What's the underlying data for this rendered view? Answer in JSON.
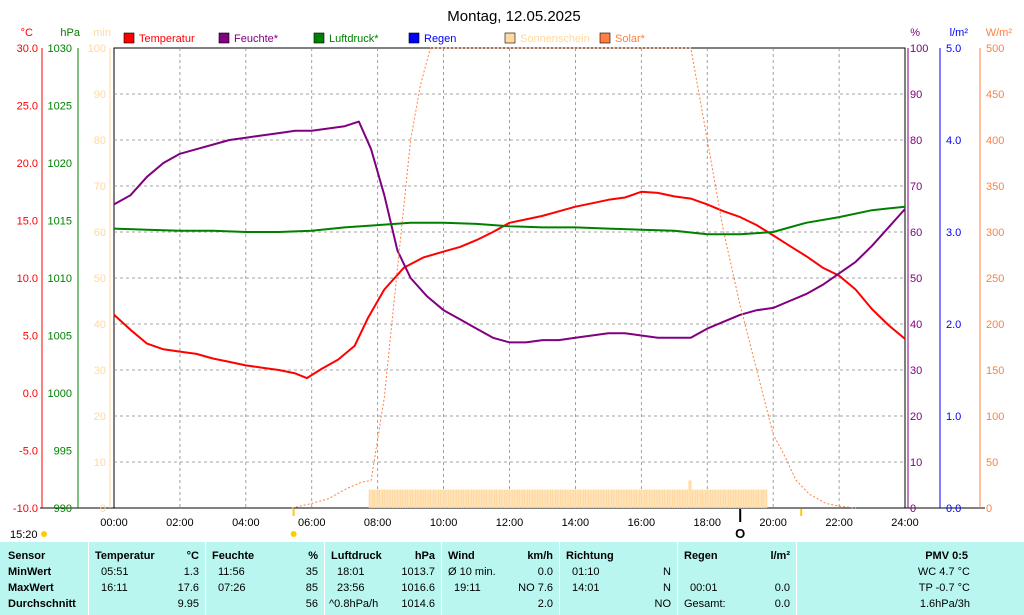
{
  "chart_data": {
    "type": "line",
    "title": "Montag, 12.05.2025",
    "time_label": "15:20",
    "x_ticks": [
      "00:00",
      "02:00",
      "04:00",
      "06:00",
      "08:00",
      "10:00",
      "12:00",
      "14:00",
      "16:00",
      "18:00",
      "20:00",
      "22:00",
      "24:00"
    ],
    "axes": {
      "temp": {
        "unit": "°C",
        "range": [
          -10,
          30
        ],
        "ticks": [
          "30.0",
          "25.0",
          "20.0",
          "15.0",
          "10.0",
          "5.0",
          "0.0",
          "-5.0",
          "-10.0"
        ],
        "color": "#ff0000"
      },
      "pressure": {
        "unit": "hPa",
        "range": [
          990,
          1030
        ],
        "ticks": [
          "1030",
          "1025",
          "1020",
          "1015",
          "1010",
          "1005",
          "1000",
          "995",
          "990"
        ],
        "color": "#008000"
      },
      "sun_minutes": {
        "unit": "min",
        "range": [
          0,
          100
        ],
        "ticks": [
          "100",
          "90",
          "80",
          "70",
          "60",
          "50",
          "40",
          "30",
          "20",
          "10",
          "0"
        ],
        "color": "#ffd9a0"
      },
      "humidity": {
        "unit": "%",
        "range": [
          0,
          100
        ],
        "ticks": [
          "100",
          "90",
          "80",
          "70",
          "60",
          "50",
          "40",
          "30",
          "20",
          "10",
          "0"
        ],
        "color": "#800080"
      },
      "rain": {
        "unit": "l/m²",
        "range": [
          0,
          5
        ],
        "ticks": [
          "5.0",
          "4.0",
          "3.0",
          "2.0",
          "1.0",
          "0.0"
        ],
        "color": "#0000ff"
      },
      "solar": {
        "unit": "W/m²",
        "range": [
          0,
          500
        ],
        "ticks": [
          "500",
          "450",
          "400",
          "350",
          "300",
          "250",
          "200",
          "150",
          "100",
          "50",
          "0"
        ],
        "color": "#ff8040"
      }
    },
    "legend": [
      {
        "name": "Temperatur",
        "color": "#ff0000",
        "text_color": "#ff0000"
      },
      {
        "name": "Feuchte*",
        "color": "#800080",
        "text_color": "#800080"
      },
      {
        "name": "Luftdruck*",
        "color": "#008000",
        "text_color": "#008000"
      },
      {
        "name": "Regen",
        "color": "#0000ff",
        "text_color": "#0000ff"
      },
      {
        "name": "Sonnenschein",
        "color": "#ffd9a0",
        "text_color": "#ffd9a0"
      },
      {
        "name": "Solar*",
        "color": "#ff8040",
        "text_color": "#ff8040"
      }
    ],
    "series": [
      {
        "name": "Temperatur",
        "axis": "temp",
        "color": "#ff0000",
        "x": [
          0,
          0.5,
          1,
          1.5,
          2,
          2.5,
          3,
          3.5,
          4,
          4.5,
          5,
          5.5,
          5.85,
          6.3,
          6.8,
          7.3,
          7.7,
          8.2,
          8.8,
          9.4,
          10,
          10.5,
          11,
          11.5,
          12,
          12.5,
          13,
          13.5,
          14,
          14.5,
          15,
          15.5,
          16,
          16.5,
          17,
          17.5,
          18,
          18.5,
          19,
          19.5,
          20,
          20.5,
          21,
          21.5,
          22,
          22.5,
          23,
          23.5,
          24
        ],
        "y": [
          6.8,
          5.5,
          4.3,
          3.8,
          3.6,
          3.4,
          3.0,
          2.7,
          2.4,
          2.2,
          2.0,
          1.7,
          1.3,
          2.1,
          2.9,
          4.1,
          6.5,
          9.0,
          10.9,
          11.8,
          12.3,
          12.7,
          13.3,
          14.0,
          14.8,
          15.1,
          15.4,
          15.8,
          16.2,
          16.5,
          16.8,
          17.0,
          17.5,
          17.4,
          17.1,
          16.9,
          16.4,
          15.8,
          15.3,
          14.6,
          13.7,
          12.8,
          11.9,
          10.9,
          10.2,
          9.0,
          7.3,
          5.9,
          4.7
        ]
      },
      {
        "name": "Feuchte*",
        "axis": "humidity",
        "color": "#800080",
        "x": [
          0,
          0.5,
          1,
          1.5,
          2,
          2.5,
          3,
          3.5,
          4,
          4.5,
          5,
          5.5,
          6,
          6.5,
          7,
          7.43,
          7.8,
          8.2,
          8.6,
          9,
          9.5,
          10,
          10.5,
          11,
          11.5,
          12,
          12.5,
          13,
          13.5,
          14,
          14.5,
          15,
          15.5,
          16,
          16.5,
          17,
          17.5,
          18,
          18.5,
          19,
          19.5,
          20,
          20.5,
          21,
          21.5,
          22,
          22.5,
          23,
          23.5,
          24
        ],
        "y": [
          66,
          68,
          72,
          75,
          77,
          78,
          79,
          80,
          80.5,
          81,
          81.5,
          82,
          82,
          82.5,
          83,
          84,
          78,
          68,
          56,
          50,
          46,
          43,
          41,
          39,
          37,
          36,
          36,
          36.5,
          36.5,
          37,
          37.5,
          38,
          38,
          37.5,
          37,
          37,
          37,
          39,
          40.5,
          42,
          43,
          43.5,
          45,
          46.5,
          48.5,
          51,
          53.5,
          57,
          61,
          65
        ]
      },
      {
        "name": "Luftdruck*",
        "axis": "pressure",
        "color": "#008000",
        "x": [
          0,
          1,
          2,
          3,
          4,
          5,
          6,
          7,
          8,
          9,
          10,
          11,
          12,
          13,
          14,
          15,
          16,
          17,
          18,
          19,
          20,
          20.5,
          21,
          22,
          23,
          24
        ],
        "y": [
          1014.3,
          1014.2,
          1014.1,
          1014.1,
          1014.0,
          1014.0,
          1014.1,
          1014.4,
          1014.6,
          1014.8,
          1014.8,
          1014.7,
          1014.5,
          1014.4,
          1014.4,
          1014.3,
          1014.2,
          1014.1,
          1013.8,
          1013.8,
          1014.0,
          1014.4,
          1014.8,
          1015.3,
          1015.9,
          1016.2
        ]
      },
      {
        "name": "Solar*",
        "axis": "solar",
        "color": "#ff8040",
        "dashed": true,
        "x": [
          5.4,
          6,
          6.5,
          7,
          7.5,
          7.8,
          8.2,
          8.6,
          9,
          9.3,
          9.6,
          9.8,
          17.5,
          18,
          18.5,
          19,
          19.5,
          20,
          20.3,
          20.7,
          21.1,
          21.6,
          22,
          22.5
        ],
        "y": [
          0,
          5,
          10,
          20,
          28,
          30,
          120,
          260,
          400,
          460,
          500,
          500,
          500,
          400,
          300,
          220,
          150,
          80,
          60,
          30,
          15,
          5,
          2,
          0
        ]
      }
    ],
    "sunshine_bars": {
      "start": 7.75,
      "end": 19.85,
      "value_min": 4,
      "peak_time": 17.5,
      "peak_value": 6
    },
    "markers": {
      "sunrise_pos": 5.45,
      "sunset_pos": 20.85,
      "sun_symbol": "O",
      "sun_pos": 19.0
    },
    "plot": {
      "grid": true,
      "border_color": "#000000"
    }
  },
  "stats": {
    "headers": {
      "sensor": "Sensor",
      "temperature": "Temperatur",
      "temperature_unit": "°C",
      "humidity": "Feuchte",
      "humidity_unit": "%",
      "pressure": "Luftdruck",
      "pressure_unit": "hPa",
      "wind": "Wind",
      "wind_unit": "km/h",
      "direction": "Richtung",
      "rain": "Regen",
      "rain_unit": "l/m²",
      "pmv": "PMV 0:5"
    },
    "rows": [
      {
        "label": "MinWert",
        "temp_time": "05:51",
        "temp_val": "1.3",
        "hum_time": "11:56",
        "hum_val": "35",
        "pres_time": "18:01",
        "pres_val": "1013.7",
        "wind_time": "Ø 10 min.",
        "wind_val": "0.0",
        "dir_time": "01:10",
        "dir_val": "N",
        "rain_time": "",
        "rain_val": "",
        "pmv": "WC 4.7 °C"
      },
      {
        "label": "MaxWert",
        "temp_time": "16:11",
        "temp_val": "17.6",
        "hum_time": "07:26",
        "hum_val": "85",
        "pres_time": "23:56",
        "pres_val": "1016.6",
        "wind_time": "19:11",
        "wind_val": "NO 7.6",
        "dir_time": "14:01",
        "dir_val": "N",
        "rain_time": "00:01",
        "rain_val": "0.0",
        "pmv": "TP -0.7 °C"
      },
      {
        "label": "Durchschnitt",
        "temp_time": "",
        "temp_val": "9.95",
        "hum_time": "",
        "hum_val": "56",
        "pres_time": "^0.8hPa/h",
        "pres_val": "1014.6",
        "wind_time": "",
        "wind_val": "2.0",
        "dir_time": "",
        "dir_val": "NO",
        "rain_time": "Gesamt:",
        "rain_val": "0.0",
        "pmv": "1.6hPa/3h"
      }
    ]
  }
}
